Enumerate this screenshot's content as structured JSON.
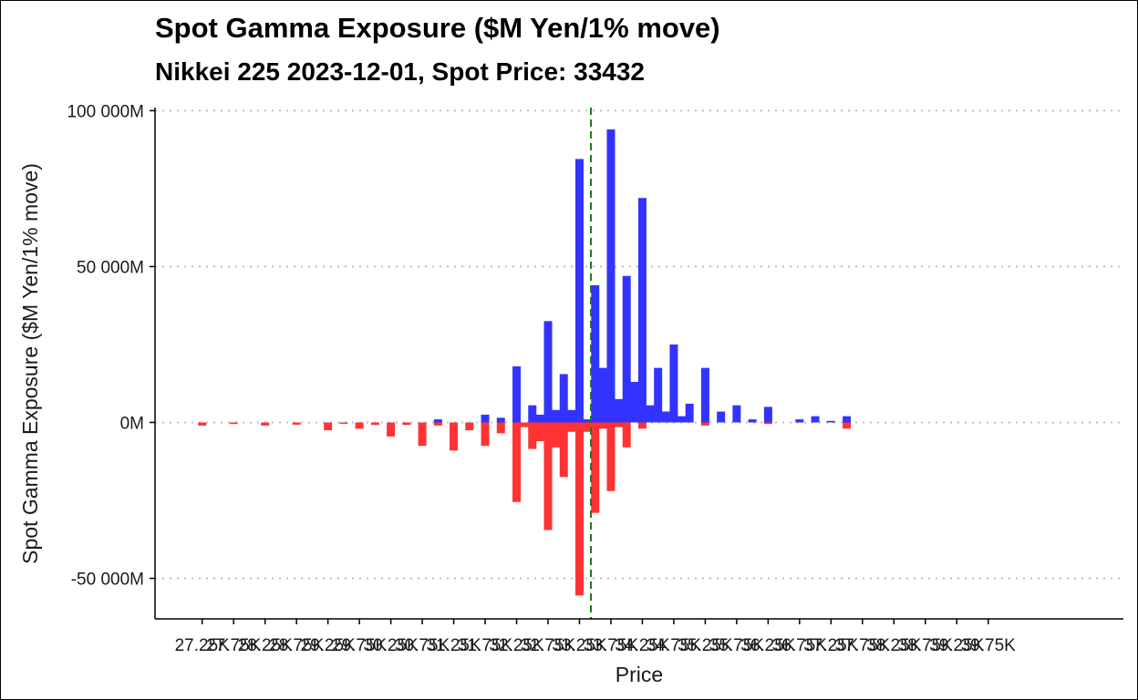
{
  "chart_data": {
    "type": "bar",
    "title": "Spot Gamma Exposure ($M Yen/1% move)",
    "subtitle": "Nikkei 225 2023-12-01, Spot Price: 33432",
    "xlabel": "Price",
    "ylabel": "Spot Gamma Exposure ($M Yen/1% move)",
    "xlim": [
      26500,
      41900
    ],
    "ylim": [
      -63000,
      101000
    ],
    "spot_price": 33432,
    "y_ticks": [
      {
        "value": 100000,
        "label": "100 000M"
      },
      {
        "value": 50000,
        "label": "50 000M"
      },
      {
        "value": 0,
        "label": "0M"
      },
      {
        "value": -50000,
        "label": "-50 000M"
      }
    ],
    "x_ticks": [
      {
        "value": 27250,
        "label": "27.25K"
      },
      {
        "value": 27750,
        "label": "27.75K"
      },
      {
        "value": 28250,
        "label": "28.25K"
      },
      {
        "value": 28750,
        "label": "28.75K"
      },
      {
        "value": 29250,
        "label": "29.25K"
      },
      {
        "value": 29750,
        "label": "29.75K"
      },
      {
        "value": 30250,
        "label": "30.25K"
      },
      {
        "value": 30750,
        "label": "30.75K"
      },
      {
        "value": 31250,
        "label": "31.25K"
      },
      {
        "value": 31750,
        "label": "31.75K"
      },
      {
        "value": 32250,
        "label": "32.25K"
      },
      {
        "value": 32750,
        "label": "32.75K"
      },
      {
        "value": 33250,
        "label": "33.25K"
      },
      {
        "value": 33750,
        "label": "33.75K"
      },
      {
        "value": 34250,
        "label": "34.25K"
      },
      {
        "value": 34750,
        "label": "34.75K"
      },
      {
        "value": 35250,
        "label": "35.25K"
      },
      {
        "value": 35750,
        "label": "35.75K"
      },
      {
        "value": 36250,
        "label": "36.25K"
      },
      {
        "value": 36750,
        "label": "36.75K"
      },
      {
        "value": 37250,
        "label": "37.25K"
      },
      {
        "value": 37750,
        "label": "37.75K"
      },
      {
        "value": 38250,
        "label": "38.25K"
      },
      {
        "value": 38750,
        "label": "38.75K"
      },
      {
        "value": 39250,
        "label": "39.25K"
      },
      {
        "value": 39750,
        "label": "39.75K"
      }
    ],
    "series": [
      {
        "color": "#3333ff",
        "points": [
          [
            31000,
            1000
          ],
          [
            31750,
            2500
          ],
          [
            32000,
            1500
          ],
          [
            32250,
            18000
          ],
          [
            32500,
            5500
          ],
          [
            32625,
            2500
          ],
          [
            32750,
            32500
          ],
          [
            32875,
            4000
          ],
          [
            33000,
            15500
          ],
          [
            33125,
            4000
          ],
          [
            33250,
            84500
          ],
          [
            33375,
            1000
          ],
          [
            33500,
            44000
          ],
          [
            33625,
            17500
          ],
          [
            33750,
            94000
          ],
          [
            33875,
            7500
          ],
          [
            34000,
            47000
          ],
          [
            34125,
            13000
          ],
          [
            34250,
            72000
          ],
          [
            34375,
            5500
          ],
          [
            34500,
            17500
          ],
          [
            34625,
            3500
          ],
          [
            34750,
            25000
          ],
          [
            34875,
            2000
          ],
          [
            35000,
            6000
          ],
          [
            35250,
            17500
          ],
          [
            35500,
            3500
          ],
          [
            35750,
            5500
          ],
          [
            36000,
            1000
          ],
          [
            36250,
            5000
          ],
          [
            36750,
            1000
          ],
          [
            37000,
            2000
          ],
          [
            37250,
            500
          ],
          [
            37500,
            2000
          ]
        ]
      },
      {
        "color": "#ff3333",
        "points": [
          [
            27250,
            -1000
          ],
          [
            27750,
            -500
          ],
          [
            28250,
            -1000
          ],
          [
            28750,
            -700
          ],
          [
            29250,
            -2500
          ],
          [
            29500,
            -300
          ],
          [
            29750,
            -2000
          ],
          [
            30000,
            -800
          ],
          [
            30250,
            -4500
          ],
          [
            30500,
            -800
          ],
          [
            30750,
            -7500
          ],
          [
            31000,
            -1000
          ],
          [
            31250,
            -9000
          ],
          [
            31500,
            -2500
          ],
          [
            31750,
            -7500
          ],
          [
            32000,
            -3500
          ],
          [
            32250,
            -25500
          ],
          [
            32375,
            -1500
          ],
          [
            32500,
            -8500
          ],
          [
            32625,
            -6000
          ],
          [
            32750,
            -34500
          ],
          [
            32875,
            -8000
          ],
          [
            33000,
            -17500
          ],
          [
            33125,
            -3000
          ],
          [
            33250,
            -55500
          ],
          [
            33375,
            -3000
          ],
          [
            33500,
            -29000
          ],
          [
            33625,
            -2000
          ],
          [
            33750,
            -22000
          ],
          [
            33875,
            -1500
          ],
          [
            34000,
            -8000
          ],
          [
            34250,
            -2000
          ],
          [
            35250,
            -1000
          ],
          [
            36250,
            -500
          ],
          [
            37500,
            -2000
          ]
        ]
      }
    ]
  }
}
